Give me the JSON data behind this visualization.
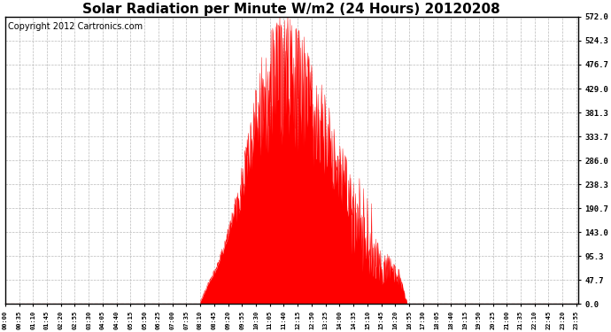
{
  "title": "Solar Radiation per Minute W/m2 (24 Hours) 20120208",
  "copyright_text": "Copyright 2012 Cartronics.com",
  "yticks": [
    0.0,
    47.7,
    95.3,
    143.0,
    190.7,
    238.3,
    286.0,
    333.7,
    381.3,
    429.0,
    476.7,
    524.3,
    572.0
  ],
  "ymax": 572.0,
  "ymin": 0.0,
  "fill_color": "red",
  "line_color": "red",
  "background_color": "white",
  "plot_bg_color": "white",
  "grid_color": "#aaaaaa",
  "title_fontsize": 11,
  "copyright_fontsize": 7,
  "tick_interval_minutes": 35,
  "total_minutes": 1440,
  "dashed_zero_line_color": "red"
}
